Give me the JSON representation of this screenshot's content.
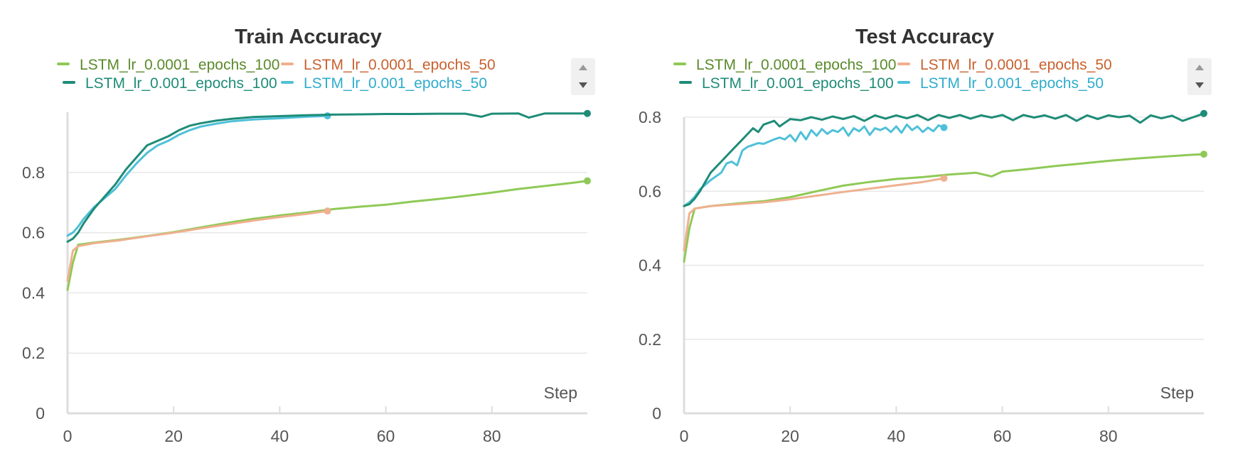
{
  "colors": {
    "lr0001_e100": "#8fc956",
    "lr0001_e50": "#efb08f",
    "lr001_e100": "#1e8c78",
    "lr001_e50": "#4fc0d8",
    "legend_text_lr0001_e100": "#5a8a2a",
    "legend_text_lr0001_e50": "#c8612e",
    "legend_text_lr001_e100": "#1e8c78",
    "legend_text_lr001_e50": "#2eaccc",
    "grid": "#e8e8e8",
    "axis": "#dddddd"
  },
  "legend": {
    "scroll_up_icon": "triangle-up-icon",
    "scroll_down_icon": "triangle-down-icon"
  },
  "chart_data": [
    {
      "type": "line",
      "title": "Train Accuracy",
      "xlabel": "Step",
      "ylabel": "",
      "xlim": [
        0,
        98
      ],
      "ylim": [
        0,
        1
      ],
      "xticks": [
        0,
        20,
        40,
        60,
        80
      ],
      "yticks": [
        0,
        0.2,
        0.4,
        0.6,
        0.8
      ],
      "ytick_labels": [
        "0",
        "0.2",
        "0.4",
        "0.6",
        "0.8"
      ],
      "grid": true,
      "legend_position": "top",
      "series": [
        {
          "name": "LSTM_lr_0.0001_epochs_100",
          "color_key": "lr0001_e100",
          "text_color_key": "legend_text_lr0001_e100",
          "x": [
            0,
            1,
            2,
            5,
            10,
            15,
            20,
            25,
            30,
            35,
            40,
            45,
            50,
            55,
            60,
            65,
            70,
            75,
            80,
            85,
            90,
            95,
            98
          ],
          "y": [
            0.41,
            0.5,
            0.56,
            0.567,
            0.577,
            0.589,
            0.602,
            0.617,
            0.632,
            0.646,
            0.657,
            0.667,
            0.678,
            0.686,
            0.693,
            0.703,
            0.712,
            0.722,
            0.733,
            0.745,
            0.755,
            0.765,
            0.772
          ]
        },
        {
          "name": "LSTM_lr_0.0001_epochs_50",
          "color_key": "lr0001_e50",
          "text_color_key": "legend_text_lr0001_e50",
          "x": [
            0,
            1,
            2,
            5,
            10,
            15,
            20,
            25,
            30,
            35,
            40,
            45,
            49
          ],
          "y": [
            0.44,
            0.54,
            0.555,
            0.565,
            0.575,
            0.588,
            0.6,
            0.614,
            0.627,
            0.64,
            0.652,
            0.662,
            0.672
          ]
        },
        {
          "name": "LSTM_lr_0.001_epochs_100",
          "color_key": "lr001_e100",
          "text_color_key": "legend_text_lr001_e100",
          "x": [
            0,
            1,
            2,
            3,
            5,
            7,
            9,
            11,
            13,
            15,
            17,
            19,
            21,
            23,
            25,
            28,
            31,
            35,
            40,
            45,
            50,
            55,
            60,
            65,
            70,
            75,
            78,
            80,
            85,
            87,
            90,
            95,
            98
          ],
          "y": [
            0.57,
            0.58,
            0.6,
            0.63,
            0.68,
            0.72,
            0.76,
            0.81,
            0.85,
            0.89,
            0.905,
            0.92,
            0.94,
            0.955,
            0.963,
            0.972,
            0.978,
            0.984,
            0.987,
            0.99,
            0.992,
            0.993,
            0.994,
            0.994,
            0.995,
            0.995,
            0.985,
            0.995,
            0.996,
            0.982,
            0.996,
            0.996,
            0.996
          ]
        },
        {
          "name": "LSTM_lr_0.001_epochs_50",
          "color_key": "lr001_e50",
          "text_color_key": "legend_text_lr001_e50",
          "x": [
            0,
            1,
            2,
            3,
            5,
            7,
            9,
            11,
            13,
            15,
            17,
            19,
            21,
            23,
            25,
            28,
            31,
            35,
            40,
            45,
            49
          ],
          "y": [
            0.59,
            0.6,
            0.62,
            0.645,
            0.685,
            0.715,
            0.745,
            0.79,
            0.83,
            0.865,
            0.89,
            0.905,
            0.925,
            0.94,
            0.952,
            0.962,
            0.97,
            0.976,
            0.98,
            0.985,
            0.988
          ]
        }
      ]
    },
    {
      "type": "line",
      "title": "Test Accuracy",
      "xlabel": "Step",
      "ylabel": "",
      "xlim": [
        0,
        98
      ],
      "ylim": [
        0,
        0.8
      ],
      "xticks": [
        0,
        20,
        40,
        60,
        80
      ],
      "yticks": [
        0,
        0.2,
        0.4,
        0.6,
        0.8
      ],
      "ytick_labels": [
        "0",
        "0.2",
        "0.4",
        "0.6",
        "0.8"
      ],
      "grid": true,
      "legend_position": "top",
      "series": [
        {
          "name": "LSTM_lr_0.0001_epochs_100",
          "color_key": "lr0001_e100",
          "text_color_key": "legend_text_lr0001_e100",
          "x": [
            0,
            1,
            2,
            5,
            10,
            15,
            20,
            25,
            30,
            35,
            40,
            45,
            50,
            55,
            58,
            60,
            65,
            70,
            75,
            80,
            85,
            90,
            95,
            98
          ],
          "y": [
            0.41,
            0.5,
            0.553,
            0.56,
            0.567,
            0.573,
            0.584,
            0.6,
            0.615,
            0.625,
            0.633,
            0.638,
            0.645,
            0.65,
            0.64,
            0.653,
            0.66,
            0.668,
            0.675,
            0.682,
            0.688,
            0.693,
            0.698,
            0.7
          ]
        },
        {
          "name": "LSTM_lr_0.0001_epochs_50",
          "color_key": "lr0001_e50",
          "text_color_key": "legend_text_lr0001_e50",
          "x": [
            0,
            1,
            2,
            5,
            10,
            15,
            20,
            25,
            30,
            35,
            40,
            45,
            49
          ],
          "y": [
            0.44,
            0.54,
            0.553,
            0.56,
            0.565,
            0.57,
            0.578,
            0.588,
            0.598,
            0.607,
            0.616,
            0.625,
            0.635
          ]
        },
        {
          "name": "LSTM_lr_0.001_epochs_100",
          "color_key": "lr001_e100",
          "text_color_key": "legend_text_lr001_e100",
          "x": [
            0,
            1,
            2,
            3,
            5,
            7,
            9,
            11,
            13,
            14,
            15,
            17,
            18,
            20,
            22,
            24,
            26,
            28,
            30,
            32,
            34,
            36,
            38,
            40,
            42,
            44,
            46,
            48,
            50,
            52,
            54,
            56,
            58,
            60,
            62,
            64,
            66,
            68,
            70,
            72,
            74,
            76,
            78,
            80,
            82,
            84,
            86,
            88,
            90,
            92,
            94,
            96,
            98
          ],
          "y": [
            0.56,
            0.565,
            0.58,
            0.6,
            0.65,
            0.68,
            0.71,
            0.74,
            0.77,
            0.76,
            0.78,
            0.79,
            0.775,
            0.795,
            0.792,
            0.8,
            0.793,
            0.802,
            0.795,
            0.803,
            0.79,
            0.805,
            0.796,
            0.805,
            0.797,
            0.806,
            0.792,
            0.806,
            0.798,
            0.806,
            0.796,
            0.805,
            0.799,
            0.806,
            0.792,
            0.806,
            0.799,
            0.805,
            0.796,
            0.806,
            0.79,
            0.805,
            0.795,
            0.805,
            0.8,
            0.804,
            0.785,
            0.805,
            0.797,
            0.804,
            0.79,
            0.8,
            0.81
          ]
        },
        {
          "name": "LSTM_lr_0.001_epochs_50",
          "color_key": "lr001_e50",
          "text_color_key": "legend_text_lr001_e50",
          "x": [
            0,
            1,
            2,
            3,
            5,
            7,
            8,
            9,
            10,
            11,
            12,
            13,
            14,
            15,
            17,
            18,
            19,
            20,
            21,
            22,
            23,
            24,
            25,
            26,
            27,
            28,
            29,
            30,
            31,
            32,
            33,
            34,
            35,
            36,
            37,
            38,
            39,
            40,
            41,
            42,
            43,
            44,
            45,
            46,
            47,
            48,
            49
          ],
          "y": [
            0.56,
            0.57,
            0.585,
            0.605,
            0.63,
            0.65,
            0.675,
            0.68,
            0.67,
            0.71,
            0.72,
            0.725,
            0.73,
            0.728,
            0.74,
            0.745,
            0.74,
            0.752,
            0.735,
            0.76,
            0.74,
            0.765,
            0.75,
            0.768,
            0.755,
            0.765,
            0.76,
            0.772,
            0.75,
            0.77,
            0.762,
            0.775,
            0.752,
            0.77,
            0.765,
            0.772,
            0.76,
            0.775,
            0.758,
            0.78,
            0.765,
            0.775,
            0.76,
            0.772,
            0.762,
            0.778,
            0.772
          ]
        }
      ]
    }
  ]
}
